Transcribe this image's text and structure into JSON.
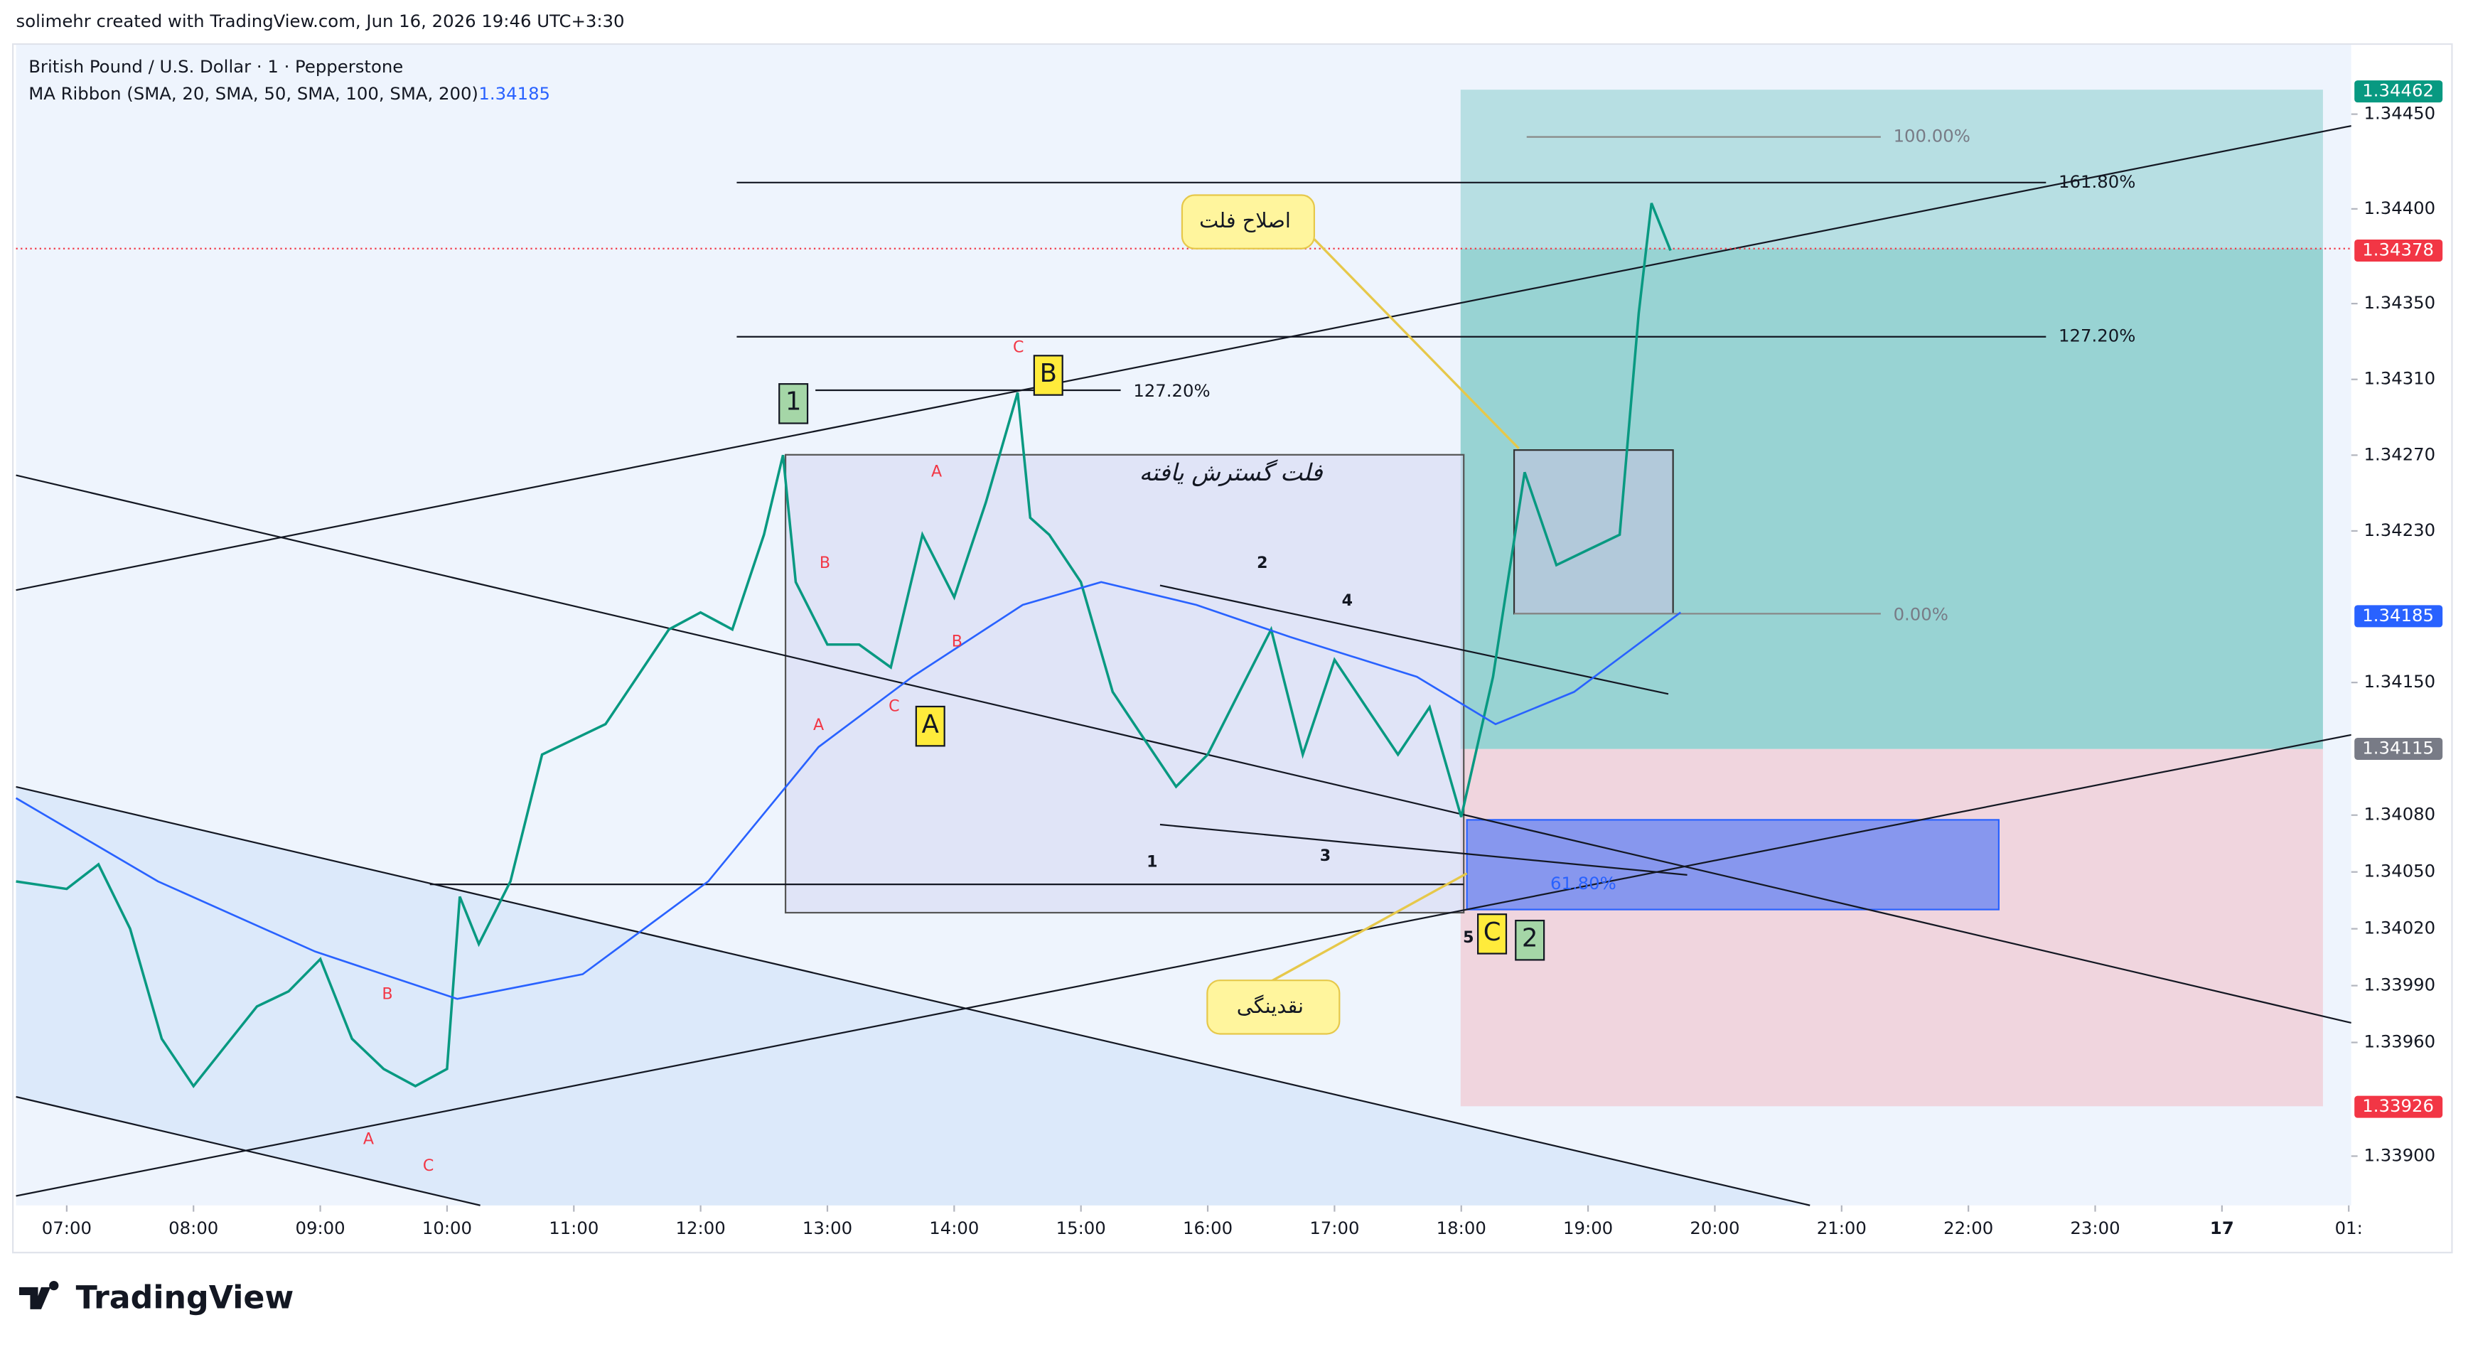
{
  "caption": "solimehr created with TradingView.com, Jun 16, 2026 19:46 UTC+3:30",
  "brand": "TradingView",
  "chart_data": {
    "type": "line",
    "xlim": [
      6.6,
      25.02
    ],
    "ylim": [
      1.33874,
      1.34487
    ],
    "xticks": [
      {
        "value": 7,
        "label": "07:00"
      },
      {
        "value": 8,
        "label": "08:00"
      },
      {
        "value": 9,
        "label": "09:00"
      },
      {
        "value": 10,
        "label": "10:00"
      },
      {
        "value": 11,
        "label": "11:00"
      },
      {
        "value": 12,
        "label": "12:00"
      },
      {
        "value": 13,
        "label": "13:00"
      },
      {
        "value": 14,
        "label": "14:00"
      },
      {
        "value": 15,
        "label": "15:00"
      },
      {
        "value": 16,
        "label": "16:00"
      },
      {
        "value": 17,
        "label": "17:00"
      },
      {
        "value": 18,
        "label": "18:00"
      },
      {
        "value": 19,
        "label": "19:00"
      },
      {
        "value": 20,
        "label": "20:00"
      },
      {
        "value": 21,
        "label": "21:00"
      },
      {
        "value": 22,
        "label": "22:00"
      },
      {
        "value": 23,
        "label": "23:00"
      },
      {
        "value": 24,
        "label": "17"
      },
      {
        "value": 25,
        "label": "01:"
      }
    ],
    "yticks": [
      {
        "value": 1.3445,
        "label": "1.34450"
      },
      {
        "value": 1.344,
        "label": "1.34400"
      },
      {
        "value": 1.3435,
        "label": "1.34350"
      },
      {
        "value": 1.3431,
        "label": "1.34310"
      },
      {
        "value": 1.3427,
        "label": "1.34270"
      },
      {
        "value": 1.3423,
        "label": "1.34230"
      },
      {
        "value": 1.3415,
        "label": "1.34150"
      },
      {
        "value": 1.3408,
        "label": "1.34080"
      },
      {
        "value": 1.3405,
        "label": "1.34050"
      },
      {
        "value": 1.3402,
        "label": "1.34020"
      },
      {
        "value": 1.3399,
        "label": "1.33990"
      },
      {
        "value": 1.3396,
        "label": "1.33960"
      },
      {
        "value": 1.339,
        "label": "1.33900"
      }
    ],
    "series": [
      {
        "name": "British Pound / U.S. Dollar · 1 · Pepperstone",
        "color": "#089981",
        "x": [
          6.6,
          7,
          7.25,
          7.5,
          7.75,
          8,
          8.25,
          8.5,
          8.75,
          9,
          9.25,
          9.5,
          9.75,
          10,
          10.1,
          10.25,
          10.5,
          10.75,
          11,
          11.25,
          11.5,
          11.75,
          12,
          12.25,
          12.5,
          12.65,
          12.75,
          13,
          13.25,
          13.5,
          13.75,
          14,
          14.25,
          14.5,
          14.6,
          14.75,
          15,
          15.25,
          15.5,
          15.75,
          16,
          16.25,
          16.5,
          16.75,
          17,
          17.25,
          17.5,
          17.75,
          18,
          18.25,
          18.5,
          18.75,
          19,
          19.25,
          19.4,
          19.5,
          19.65
        ],
        "values": [
          1.34045,
          1.34041,
          1.34054,
          1.3402,
          1.33962,
          1.33937,
          1.33958,
          1.33979,
          1.33987,
          1.34004,
          1.33962,
          1.33946,
          1.33937,
          1.33946,
          1.34037,
          1.34012,
          1.34045,
          1.34112,
          1.3412,
          1.34128,
          1.34153,
          1.34178,
          1.34187,
          1.34178,
          1.34228,
          1.3427,
          1.34203,
          1.3417,
          1.3417,
          1.34158,
          1.34228,
          1.34195,
          1.34245,
          1.34303,
          1.34237,
          1.34228,
          1.34203,
          1.34145,
          1.3412,
          1.34095,
          1.34112,
          1.34145,
          1.34178,
          1.34112,
          1.34162,
          1.34137,
          1.34112,
          1.34137,
          1.34079,
          1.34153,
          1.34261,
          1.34212,
          1.3422,
          1.34228,
          1.34345,
          1.34403,
          1.34378
        ]
      },
      {
        "name": "MA Ribbon (SMA, 20, SMA, 50, SMA, 100, SMA, 200)",
        "color": "#2962ff",
        "x": [
          6.6,
          7.72,
          8.96,
          10.08,
          11.07,
          12.06,
          12.93,
          13.67,
          14.54,
          15.16,
          15.91,
          16.65,
          17.65,
          18.27,
          18.89,
          19.73
        ],
        "values": [
          1.34089,
          1.34045,
          1.34008,
          1.33983,
          1.33996,
          1.34045,
          1.34116,
          1.34153,
          1.34191,
          1.34203,
          1.34191,
          1.34174,
          1.34153,
          1.34128,
          1.34145,
          1.34187
        ]
      }
    ],
    "price_labels": [
      {
        "value": 1.34462,
        "color": "#089981"
      },
      {
        "value": 1.34378,
        "color": "#f23645"
      },
      {
        "value": 1.34185,
        "color": "#2962ff"
      },
      {
        "value": 1.34115,
        "color": "#787b86"
      },
      {
        "value": 1.33926,
        "color": "#f23645"
      }
    ],
    "annotations": [
      "100.00%",
      "161.80%",
      "127.20%",
      "127.20%",
      "0.00%",
      "61.80%",
      "اصلاح فلت",
      "فلت گسترش یافته",
      "نقدینگی",
      "A",
      "B",
      "A",
      "C",
      "B",
      "C",
      "B",
      "A",
      "C",
      "2",
      "4",
      "1",
      "3",
      "5",
      "1",
      "B",
      "A",
      "C",
      "2"
    ]
  }
}
